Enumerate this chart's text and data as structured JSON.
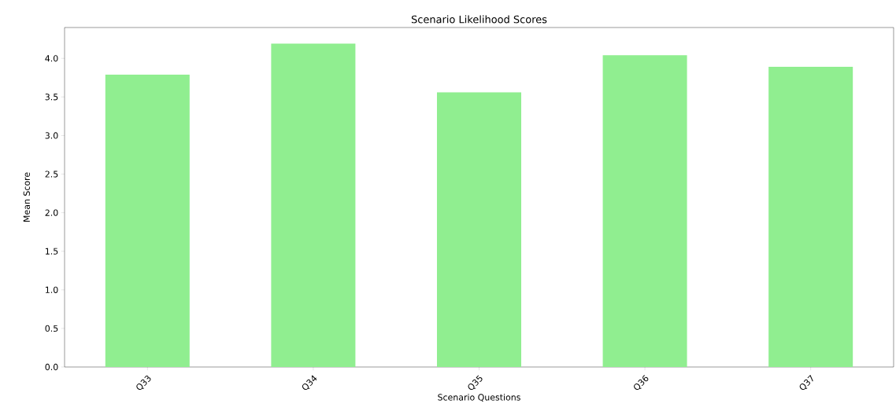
{
  "chart_data": {
    "type": "bar",
    "title": "Scenario Likelihood Scores",
    "xlabel": "Scenario Questions",
    "ylabel": "Mean Score",
    "categories": [
      "Q33",
      "Q34",
      "Q35",
      "Q36",
      "Q37"
    ],
    "values": [
      3.79,
      4.19,
      3.56,
      4.04,
      3.89
    ],
    "color": "#90ee90",
    "ylim": [
      0,
      4.4
    ],
    "yticks": [
      {
        "value": 0,
        "label": "0.0"
      },
      {
        "value": 0.5,
        "label": "0.5"
      },
      {
        "value": 1,
        "label": "1.0"
      },
      {
        "value": 1.5,
        "label": "1.5"
      },
      {
        "value": 2,
        "label": "2.0"
      },
      {
        "value": 2.5,
        "label": "2.5"
      },
      {
        "value": 3,
        "label": "3.0"
      },
      {
        "value": 3.5,
        "label": "3.5"
      },
      {
        "value": 4,
        "label": "4.0"
      }
    ],
    "grid": false
  }
}
